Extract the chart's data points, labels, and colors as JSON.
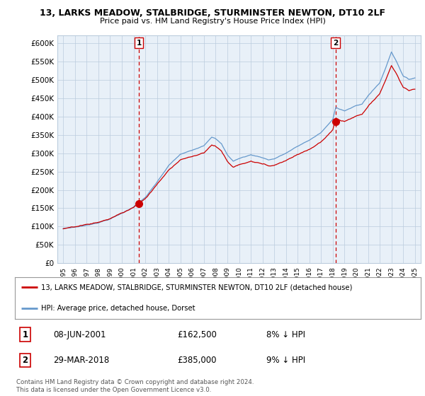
{
  "title": "13, LARKS MEADOW, STALBRIDGE, STURMINSTER NEWTON, DT10 2LF",
  "subtitle": "Price paid vs. HM Land Registry's House Price Index (HPI)",
  "ylabel_ticks": [
    "£0",
    "£50K",
    "£100K",
    "£150K",
    "£200K",
    "£250K",
    "£300K",
    "£350K",
    "£400K",
    "£450K",
    "£500K",
    "£550K",
    "£600K"
  ],
  "ylim": [
    0,
    620000
  ],
  "sale1_date": 2001.45,
  "sale1_price": 162500,
  "sale1_label": "1",
  "sale2_date": 2018.22,
  "sale2_price": 385000,
  "sale2_label": "2",
  "legend_red": "13, LARKS MEADOW, STALBRIDGE, STURMINSTER NEWTON, DT10 2LF (detached house)",
  "legend_blue": "HPI: Average price, detached house, Dorset",
  "table_row1": [
    "1",
    "08-JUN-2001",
    "£162,500",
    "8% ↓ HPI"
  ],
  "table_row2": [
    "2",
    "29-MAR-2018",
    "£385,000",
    "9% ↓ HPI"
  ],
  "footer": "Contains HM Land Registry data © Crown copyright and database right 2024.\nThis data is licensed under the Open Government Licence v3.0.",
  "hpi_color": "#6699CC",
  "price_color": "#CC0000",
  "sale_marker_color": "#CC0000",
  "vline_color": "#CC0000",
  "background_color": "#FFFFFF",
  "chart_bg_color": "#E8F0F8",
  "grid_color": "#BBCCDD"
}
